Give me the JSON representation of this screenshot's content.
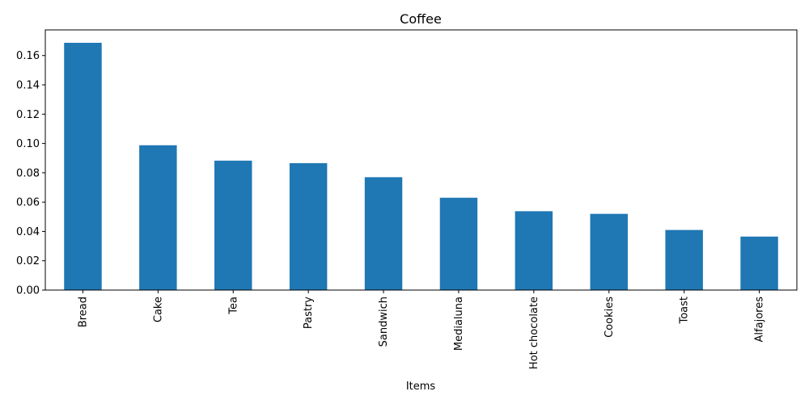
{
  "chart_data": {
    "type": "bar",
    "title": "Coffee",
    "xlabel": "Items",
    "ylabel": "",
    "categories": [
      "Bread",
      "Cake",
      "Tea",
      "Pastry",
      "Sandwich",
      "Medialuna",
      "Hot chocolate",
      "Cookies",
      "Toast",
      "Alfajores"
    ],
    "values": [
      0.1687,
      0.0988,
      0.0883,
      0.0866,
      0.077,
      0.063,
      0.0538,
      0.052,
      0.041,
      0.0365
    ],
    "ylim": [
      0,
      0.1775
    ],
    "yticks": [
      0.0,
      0.02,
      0.04,
      0.06,
      0.08,
      0.1,
      0.12,
      0.14,
      0.16
    ],
    "ytick_labels": [
      "0.00",
      "0.02",
      "0.04",
      "0.06",
      "0.08",
      "0.10",
      "0.12",
      "0.14",
      "0.16"
    ],
    "bar_color": "#1f77b4",
    "grid": false,
    "legend": "none"
  }
}
